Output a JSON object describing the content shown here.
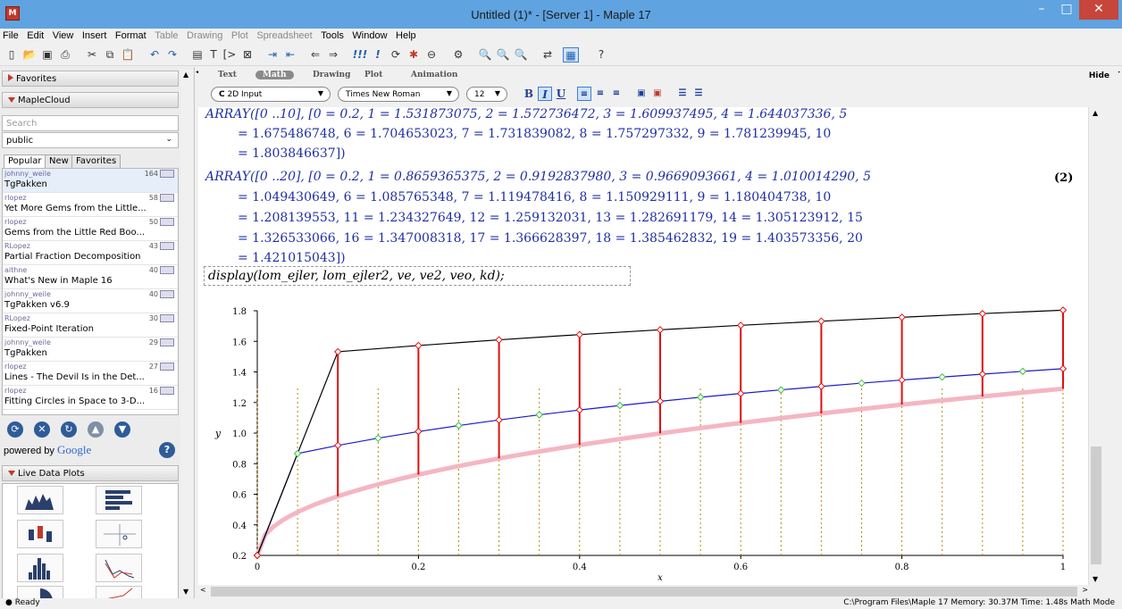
{
  "window": {
    "title": "Untitled (1)* - [Server 1] - Maple 17",
    "icon": "maple-leaf-icon",
    "minimize": "–",
    "maximize": "□",
    "close": "✕"
  },
  "menu": [
    "File",
    "Edit",
    "View",
    "Insert",
    "Format",
    "Table",
    "Drawing",
    "Plot",
    "Spreadsheet",
    "Tools",
    "Window",
    "Help"
  ],
  "menu_disabled": [
    "Table",
    "Drawing",
    "Plot",
    "Spreadsheet"
  ],
  "toolbar_icons": [
    "new-document-icon",
    "open-icon",
    "save-icon",
    "print-icon",
    "cut-icon",
    "copy-icon",
    "paste-icon",
    "undo-icon",
    "redo-icon",
    "math-mode-icon",
    "text-mode-icon",
    "execution-group-icon",
    "section-icon",
    "indent-icon",
    "outdent-icon",
    "back-icon",
    "forward-icon",
    "execute-all-icon",
    "execute-icon",
    "restart-icon",
    "debug-icon",
    "stop-icon",
    "assistant-icon",
    "zoom-100-icon",
    "zoom-150-icon",
    "zoom-200-icon",
    "toggle-input-icon",
    "show-hide-icon",
    "help-icon"
  ],
  "left_panel": {
    "favorites": "Favorites",
    "maplecloud": "MapleCloud",
    "search_placeholder": "Search",
    "group": "public",
    "tabs": [
      "Popular",
      "New",
      "Favorites"
    ],
    "items": [
      {
        "author": "johnny_weile",
        "count": "164",
        "title": "TgPakken"
      },
      {
        "author": "rlopez",
        "count": "58",
        "title": "Yet More Gems from the Little..."
      },
      {
        "author": "rlopez",
        "count": "50",
        "title": "Gems from the Little Red Boo..."
      },
      {
        "author": "RLopez",
        "count": "43",
        "title": "Partial Fraction Decomposition"
      },
      {
        "author": "aithne",
        "count": "40",
        "title": "What's New in Maple 16"
      },
      {
        "author": "johnny_weile",
        "count": "40",
        "title": "TgPakken v6.9"
      },
      {
        "author": "RLopez",
        "count": "30",
        "title": "Fixed-Point Iteration"
      },
      {
        "author": "johnny_weile",
        "count": "29",
        "title": "TgPakken"
      },
      {
        "author": "rlopez",
        "count": "27",
        "title": "Lines - The Devil Is in the Det..."
      },
      {
        "author": "rlopez",
        "count": "16",
        "title": "Fitting Circles in Space to 3-D..."
      }
    ],
    "cloud_buttons": [
      "refresh-icon",
      "cancel-icon",
      "sync-icon",
      "upload-icon",
      "download-icon"
    ],
    "powered_by": "powered by",
    "google": "Google",
    "live_data_plots": "Live Data Plots"
  },
  "context_bar": {
    "tabs": [
      "Text",
      "Math",
      "Drawing",
      "Plot",
      "Animation"
    ],
    "active_tab": "Math",
    "hide": "Hide",
    "input_mode": "2D Input",
    "input_mode_icon": "C",
    "font": "Times New Roman",
    "size": "12",
    "bold": "B",
    "italic": "I",
    "underline": "U"
  },
  "document": {
    "array1": [
      "ARRAY([0 ..10], [0 = 0.2, 1 = 1.531873075, 2 = 1.572736472, 3 = 1.609937495, 4 = 1.644037336, 5",
      "= 1.675486748, 6 = 1.704653023, 7 = 1.731839082, 8 = 1.757297332, 9 = 1.781239945, 10",
      "= 1.803846637])"
    ],
    "array2": [
      "ARRAY([0 ..20], [0 = 0.2, 1 = 0.8659365375, 2 = 0.9192837980, 3 = 0.9669093661, 4 = 1.010014290, 5",
      "= 1.049430649, 6 = 1.085765348, 7 = 1.119478416, 8 = 1.150929111, 9 = 1.180404738, 10",
      "= 1.208139553, 11 = 1.234327649, 12 = 1.259132031, 13 = 1.282691179, 14 = 1.305123912, 15",
      "= 1.326533066, 16 = 1.347008318, 17 = 1.366628397, 18 = 1.385462832, 19 = 1.403573356, 20",
      "= 1.421015043])"
    ],
    "equation_label": "(2)",
    "command": "display(lom_ejler, lom_ejler2, ve, ve2, veo, kd);"
  },
  "chart_data": {
    "type": "line",
    "xlabel": "x",
    "ylabel": "y",
    "xlim": [
      0,
      1
    ],
    "ylim": [
      0.2,
      1.8
    ],
    "xticks": [
      "0",
      "0.2",
      "0.4",
      "0.6",
      "0.8",
      "1"
    ],
    "yticks": [
      "0.2",
      "0.4",
      "0.6",
      "0.8",
      "1.0",
      "1.2",
      "1.4",
      "1.6",
      "1.8"
    ],
    "series": [
      {
        "color": "#000000",
        "x": [
          0,
          0.1,
          0.2,
          0.3,
          0.4,
          0.5,
          0.6,
          0.7,
          0.8,
          0.9,
          1.0
        ],
        "values": [
          0.2,
          1.531873075,
          1.572736472,
          1.609937495,
          1.644037336,
          1.675486748,
          1.704653023,
          1.731839082,
          1.757297332,
          1.781239945,
          1.803846637
        ]
      },
      {
        "color": "#1a1acc",
        "x": [
          0,
          0.05,
          0.1,
          0.15,
          0.2,
          0.25,
          0.3,
          0.35,
          0.4,
          0.45,
          0.5,
          0.55,
          0.6,
          0.65,
          0.7,
          0.75,
          0.8,
          0.85,
          0.9,
          0.95,
          1.0
        ],
        "values": [
          0.2,
          0.8659365375,
          0.919283798,
          0.9669093661,
          1.01001429,
          1.049430649,
          1.085765348,
          1.119478416,
          1.150929111,
          1.180404738,
          1.208139553,
          1.234327649,
          1.259132031,
          1.282691179,
          1.305123912,
          1.326533066,
          1.347008318,
          1.366628397,
          1.385462832,
          1.403573356,
          1.421015043
        ]
      },
      {
        "color": "#f4b6c2",
        "values": "smooth curve from (0, 0.2) rising to about 1.29 at x = 1"
      }
    ],
    "colors": {
      "red_markers": "#e01010",
      "green_markers": "#3fbf3f",
      "dotted_lines": "#b8860b"
    }
  },
  "scrollbars": {
    "up": "▲",
    "down": "▼",
    "left": "<",
    "right": ">"
  },
  "status": {
    "left": "● Ready",
    "right": "C:\\Program Files\\Maple 17   Memory: 30.37M   Time: 1.48s   Math Mode"
  }
}
